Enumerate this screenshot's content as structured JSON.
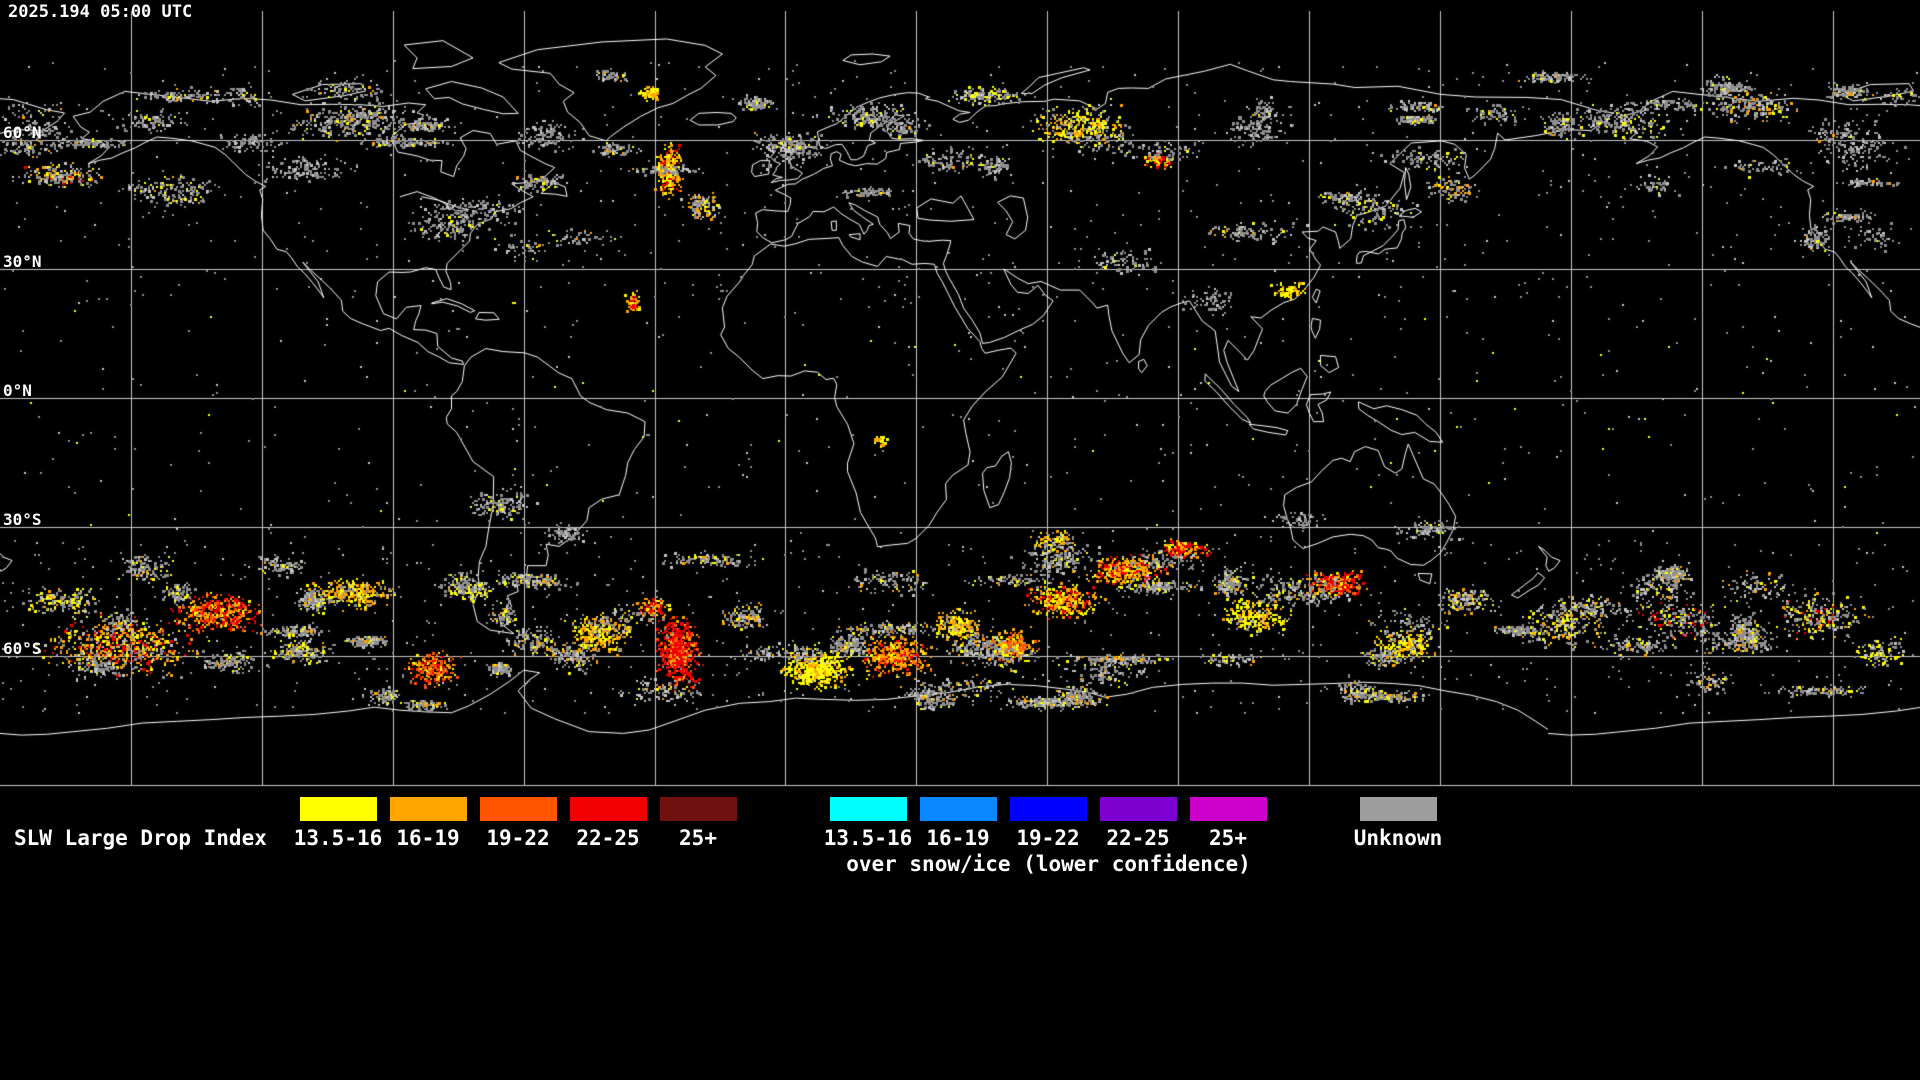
{
  "header": {
    "timestamp": "2025.194 05:00 UTC"
  },
  "map": {
    "background": "#000000",
    "coastline_color": "#ffffff",
    "grid_color": "#c8c8c8",
    "unknown_speckle_color": "#8f8f8f",
    "latitude_labels": [
      {
        "label": "60°N"
      },
      {
        "label": "30°N"
      },
      {
        "label": "0°N"
      },
      {
        "label": "30°S"
      },
      {
        "label": "60°S"
      }
    ]
  },
  "legend": {
    "title": "SLW Large Drop Index",
    "liquid_classes": [
      {
        "label": "13.5-16",
        "color": "#ffff00"
      },
      {
        "label": "16-19",
        "color": "#ffa500"
      },
      {
        "label": "19-22",
        "color": "#ff5500"
      },
      {
        "label": "22-25",
        "color": "#f20000"
      },
      {
        "label": "25+",
        "color": "#701010"
      }
    ],
    "snow_ice_classes": [
      {
        "label": "13.5-16",
        "color": "#00ffff"
      },
      {
        "label": "16-19",
        "color": "#0a87ff"
      },
      {
        "label": "19-22",
        "color": "#0000ff"
      },
      {
        "label": "22-25",
        "color": "#7d00d0"
      },
      {
        "label": "25+",
        "color": "#cc00cc"
      }
    ],
    "snow_ice_note": "over snow/ice (lower confidence)",
    "unknown_class": {
      "label": "Unknown",
      "color": "#9e9e9e"
    }
  }
}
